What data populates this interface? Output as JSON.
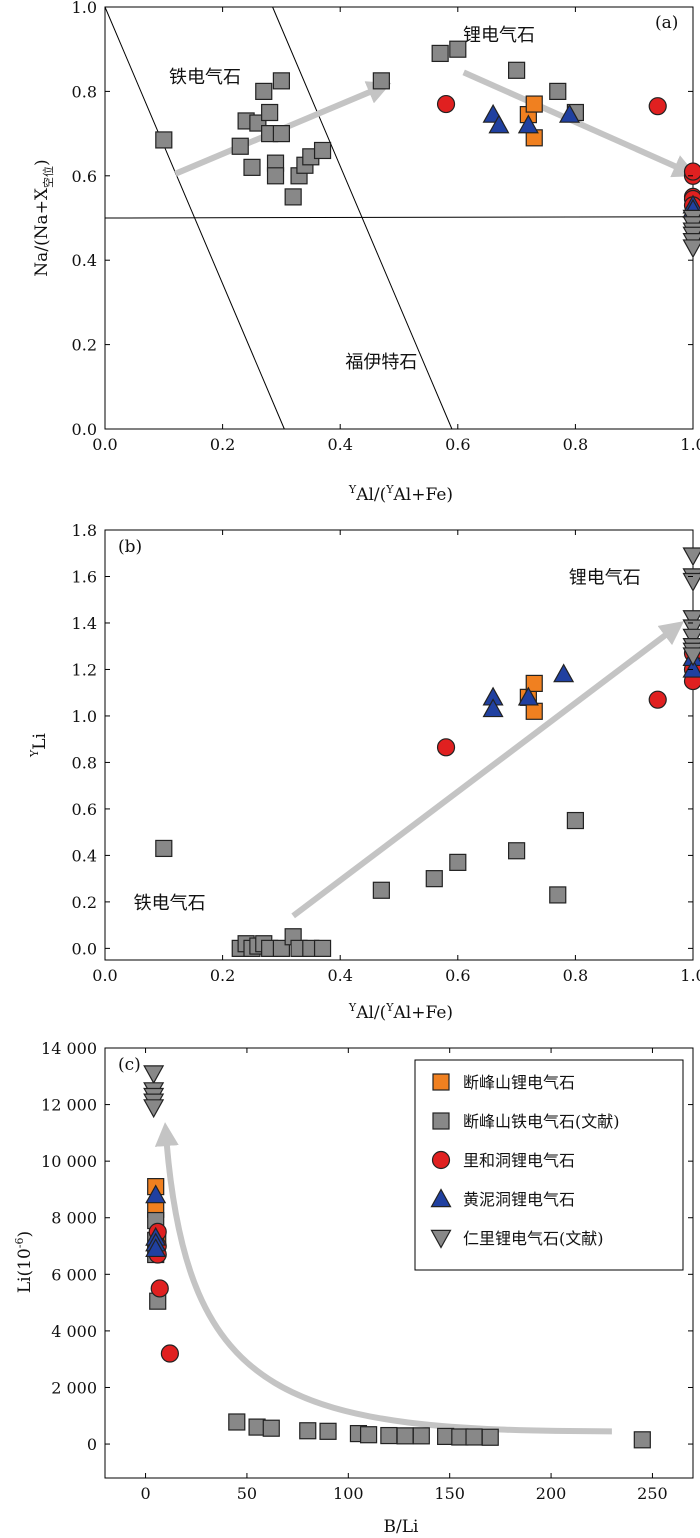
{
  "figure": {
    "panels": [
      {
        "label": "(a)",
        "ylabel": "Na/(Na+X",
        "ylabel_sub": "空位",
        "ylabel_close": ")",
        "xlabel_pre": "Y",
        "xlabel_main": "Al/(",
        "xlabel_mid": "Y",
        "xlabel_end": "Al+Fe)"
      },
      {
        "label": "(b)",
        "ylabel_sup": "Y",
        "ylabel": "Li",
        "xlabel_pre": "Y",
        "xlabel_main": "Al/(",
        "xlabel_mid": "Y",
        "xlabel_end": "Al+Fe)"
      },
      {
        "label": "(c)",
        "ylabel": "Li(10",
        "ylabel_sup": "-6",
        "ylabel_close": ")",
        "xlabel": "B/Li"
      }
    ]
  },
  "chart_data": [
    {
      "type": "scatter",
      "title": "",
      "xlabel": "YAl/(YAl+Fe)",
      "ylabel": "Na/(Na+X空位)",
      "xlim": [
        0,
        1.0
      ],
      "ylim": [
        0,
        1.0
      ],
      "xticks": [
        "0.0",
        "0.2",
        "0.4",
        "0.6",
        "0.8",
        "1.0"
      ],
      "yticks": [
        "0.0",
        "0.2",
        "0.4",
        "0.6",
        "0.8",
        "1.0"
      ],
      "annotations": [
        {
          "text": "铁电气石",
          "x": 0.17,
          "y": 0.82
        },
        {
          "text": "锂电气石",
          "x": 0.67,
          "y": 0.92
        },
        {
          "text": "福伊特石",
          "x": 0.47,
          "y": 0.145
        }
      ],
      "lines": [
        {
          "x": [
            0,
            1.0
          ],
          "y": [
            0.5,
            0.503
          ]
        },
        {
          "x": [
            0.0,
            0.305
          ],
          "y": [
            1.0,
            0
          ]
        },
        {
          "x": [
            0.285,
            0.59
          ],
          "y": [
            1.0,
            0
          ]
        }
      ],
      "arrows": [
        {
          "x": [
            0.12,
            0.47
          ],
          "y": [
            0.605,
            0.81
          ]
        },
        {
          "x": [
            0.61,
            0.99
          ],
          "y": [
            0.845,
            0.61
          ]
        }
      ],
      "series": [
        {
          "name": "断峰山铁电气石(文献)",
          "marker": "square",
          "color": "#888888",
          "points": [
            [
              0.1,
              0.685
            ],
            [
              0.23,
              0.67
            ],
            [
              0.24,
              0.73
            ],
            [
              0.26,
              0.725
            ],
            [
              0.27,
              0.8
            ],
            [
              0.25,
              0.62
            ],
            [
              0.28,
              0.75
            ],
            [
              0.28,
              0.7
            ],
            [
              0.3,
              0.7
            ],
            [
              0.3,
              0.825
            ],
            [
              0.29,
              0.63
            ],
            [
              0.29,
              0.6
            ],
            [
              0.32,
              0.55
            ],
            [
              0.33,
              0.6
            ],
            [
              0.34,
              0.625
            ],
            [
              0.35,
              0.645
            ],
            [
              0.37,
              0.66
            ],
            [
              0.47,
              0.825
            ],
            [
              0.57,
              0.89
            ],
            [
              0.6,
              0.9
            ],
            [
              0.7,
              0.85
            ],
            [
              0.77,
              0.8
            ],
            [
              0.8,
              0.75
            ]
          ]
        },
        {
          "name": "断峰山锂电气石",
          "marker": "square",
          "color": "#f08020",
          "points": [
            [
              0.72,
              0.745
            ],
            [
              0.73,
              0.77
            ],
            [
              0.73,
              0.69
            ]
          ]
        },
        {
          "name": "里和洞锂电气石",
          "marker": "circle",
          "color": "#e02020",
          "points": [
            [
              0.58,
              0.77
            ],
            [
              0.94,
              0.765
            ],
            [
              1.0,
              0.6
            ],
            [
              1.0,
              0.61
            ],
            [
              1.0,
              0.55
            ],
            [
              1.0,
              0.545
            ],
            [
              1.0,
              0.53
            ]
          ]
        },
        {
          "name": "黄泥洞锂电气石",
          "marker": "triangle-up",
          "color": "#2040a0",
          "points": [
            [
              0.66,
              0.745
            ],
            [
              0.67,
              0.72
            ],
            [
              0.72,
              0.72
            ],
            [
              0.79,
              0.745
            ],
            [
              1.0,
              0.53
            ],
            [
              1.0,
              0.52
            ]
          ]
        },
        {
          "name": "仁里锂电气石(文献)",
          "marker": "triangle-down",
          "color": "#888888",
          "points": [
            [
              1.0,
              0.5
            ],
            [
              1.0,
              0.485
            ],
            [
              1.0,
              0.47
            ],
            [
              1.0,
              0.46
            ],
            [
              1.0,
              0.445
            ],
            [
              1.0,
              0.43
            ]
          ]
        }
      ]
    },
    {
      "type": "scatter",
      "title": "",
      "xlabel": "YAl/(YAl+Fe)",
      "ylabel": "YLi",
      "xlim": [
        0,
        1.0
      ],
      "ylim": [
        -0.05,
        1.8
      ],
      "xticks": [
        "0.0",
        "0.2",
        "0.4",
        "0.6",
        "0.8",
        "1.0"
      ],
      "yticks": [
        "0.0",
        "0.2",
        "0.4",
        "0.6",
        "0.8",
        "1.0",
        "1.2",
        "1.4",
        "1.6",
        "1.8"
      ],
      "annotations": [
        {
          "text": "锂电气石",
          "x": 0.85,
          "y": 1.57
        },
        {
          "text": "铁电气石",
          "x": 0.11,
          "y": 0.17
        }
      ],
      "arrows": [
        {
          "x": [
            0.32,
            0.97
          ],
          "y": [
            0.14,
            1.38
          ]
        }
      ],
      "series": [
        {
          "name": "断峰山铁电气石(文献)",
          "marker": "square",
          "color": "#888888",
          "points": [
            [
              0.1,
              0.43
            ],
            [
              0.23,
              0.0
            ],
            [
              0.24,
              0.02
            ],
            [
              0.25,
              0.0
            ],
            [
              0.26,
              0.01
            ],
            [
              0.27,
              0.02
            ],
            [
              0.28,
              0.0
            ],
            [
              0.3,
              0.0
            ],
            [
              0.32,
              0.05
            ],
            [
              0.33,
              0.0
            ],
            [
              0.35,
              0.0
            ],
            [
              0.37,
              0.0
            ],
            [
              0.47,
              0.25
            ],
            [
              0.56,
              0.3
            ],
            [
              0.6,
              0.37
            ],
            [
              0.7,
              0.42
            ],
            [
              0.77,
              0.23
            ],
            [
              0.8,
              0.55
            ]
          ]
        },
        {
          "name": "断峰山锂电气石",
          "marker": "square",
          "color": "#f08020",
          "points": [
            [
              0.72,
              1.08
            ],
            [
              0.73,
              1.14
            ],
            [
              0.73,
              1.02
            ]
          ]
        },
        {
          "name": "里和洞锂电气石",
          "marker": "circle",
          "color": "#e02020",
          "points": [
            [
              0.58,
              0.865
            ],
            [
              0.94,
              1.07
            ],
            [
              1.0,
              1.2
            ],
            [
              1.0,
              1.27
            ],
            [
              1.0,
              1.15
            ]
          ]
        },
        {
          "name": "黄泥洞锂电气石",
          "marker": "triangle-up",
          "color": "#2040a0",
          "points": [
            [
              0.66,
              1.08
            ],
            [
              0.66,
              1.03
            ],
            [
              0.72,
              1.08
            ],
            [
              0.78,
              1.18
            ],
            [
              1.0,
              1.25
            ],
            [
              1.0,
              1.2
            ]
          ]
        },
        {
          "name": "仁里锂电气石(文献)",
          "marker": "triangle-down",
          "color": "#888888",
          "points": [
            [
              1.0,
              1.69
            ],
            [
              1.0,
              1.6
            ],
            [
              1.0,
              1.58
            ],
            [
              1.0,
              1.42
            ],
            [
              1.0,
              1.38
            ],
            [
              1.0,
              1.34
            ],
            [
              1.0,
              1.3
            ],
            [
              1.0,
              1.28
            ],
            [
              1.0,
              1.26
            ]
          ]
        }
      ]
    },
    {
      "type": "scatter",
      "title": "",
      "xlabel": "B/Li",
      "ylabel": "Li(10-6)",
      "xlim": [
        -20,
        270
      ],
      "ylim": [
        -1200,
        14000
      ],
      "xticks": [
        "0",
        "50",
        "100",
        "150",
        "200",
        "250"
      ],
      "yticks": [
        "0",
        "2 000",
        "4 000",
        "6 000",
        "8 000",
        "10 000",
        "12 000",
        "14 000"
      ],
      "arrows": [
        {
          "curve": [
            [
              230,
              450
            ],
            [
              70,
              450
            ],
            [
              20,
              1500
            ],
            [
              10,
              11000
            ]
          ]
        }
      ],
      "legend": {
        "position": "top-right"
      },
      "series": [
        {
          "name": "断峰山锂电气石",
          "marker": "square",
          "color": "#f08020",
          "points": [
            [
              5,
              9100
            ],
            [
              5,
              8300
            ],
            [
              6,
              7300
            ]
          ]
        },
        {
          "name": "断峰山铁电气石(文献)",
          "marker": "square",
          "color": "#888888",
          "points": [
            [
              6,
              5050
            ],
            [
              5,
              7900
            ],
            [
              5,
              7200
            ],
            [
              5,
              6700
            ],
            [
              45,
              780
            ],
            [
              55,
              600
            ],
            [
              62,
              560
            ],
            [
              80,
              470
            ],
            [
              90,
              450
            ],
            [
              105,
              370
            ],
            [
              110,
              330
            ],
            [
              120,
              300
            ],
            [
              128,
              290
            ],
            [
              136,
              290
            ],
            [
              148,
              270
            ],
            [
              155,
              250
            ],
            [
              162,
              250
            ],
            [
              170,
              240
            ],
            [
              245,
              150
            ]
          ]
        },
        {
          "name": "里和洞锂电气石",
          "marker": "circle",
          "color": "#e02020",
          "points": [
            [
              7,
              5500
            ],
            [
              12,
              3200
            ],
            [
              6,
              7500
            ],
            [
              6,
              7000
            ],
            [
              6,
              6700
            ]
          ]
        },
        {
          "name": "黄泥洞锂电气石",
          "marker": "triangle-up",
          "color": "#2040a0",
          "points": [
            [
              5,
              8800
            ],
            [
              5,
              7300
            ],
            [
              5,
              7100
            ],
            [
              5,
              6900
            ]
          ]
        },
        {
          "name": "仁里锂电气石(文献)",
          "marker": "triangle-down",
          "color": "#888888",
          "points": [
            [
              4,
              13100
            ],
            [
              4,
              12500
            ],
            [
              4,
              12300
            ],
            [
              4,
              12100
            ],
            [
              4,
              11900
            ]
          ]
        }
      ]
    }
  ]
}
